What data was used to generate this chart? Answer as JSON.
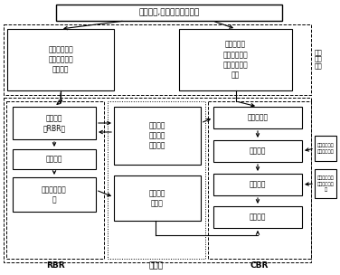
{
  "title": "数控加工,刀具智能选择流程",
  "box_top_left": "加工性质：零\n件加工特征、\n零件材质",
  "box_top_right": "零件特征尺\n寸、加工精度\n范围、表面粗\n糙度",
  "label_right": "零件\n录入\n信息",
  "box_rbr1": "规则推理\n（RBR）",
  "box_rbr2": "冲突消解",
  "box_rbr3": "刀具类型及材\n料",
  "box_db1": "刀具类型\n及材料选\n择规则库",
  "box_db2": "切削加工\n实例库",
  "box_cbr1": "候选实例集",
  "box_cbr2": "实例匹配",
  "box_cbr3": "实例修改",
  "box_cbr4": "实例复用",
  "box_side1": "属性相似度、\n量性优先计算",
  "box_side2": "自整调用试刀\n及儿何修修作\n门",
  "label_rbr": "RBR",
  "label_db": "数据库",
  "label_cbr": "CBR"
}
